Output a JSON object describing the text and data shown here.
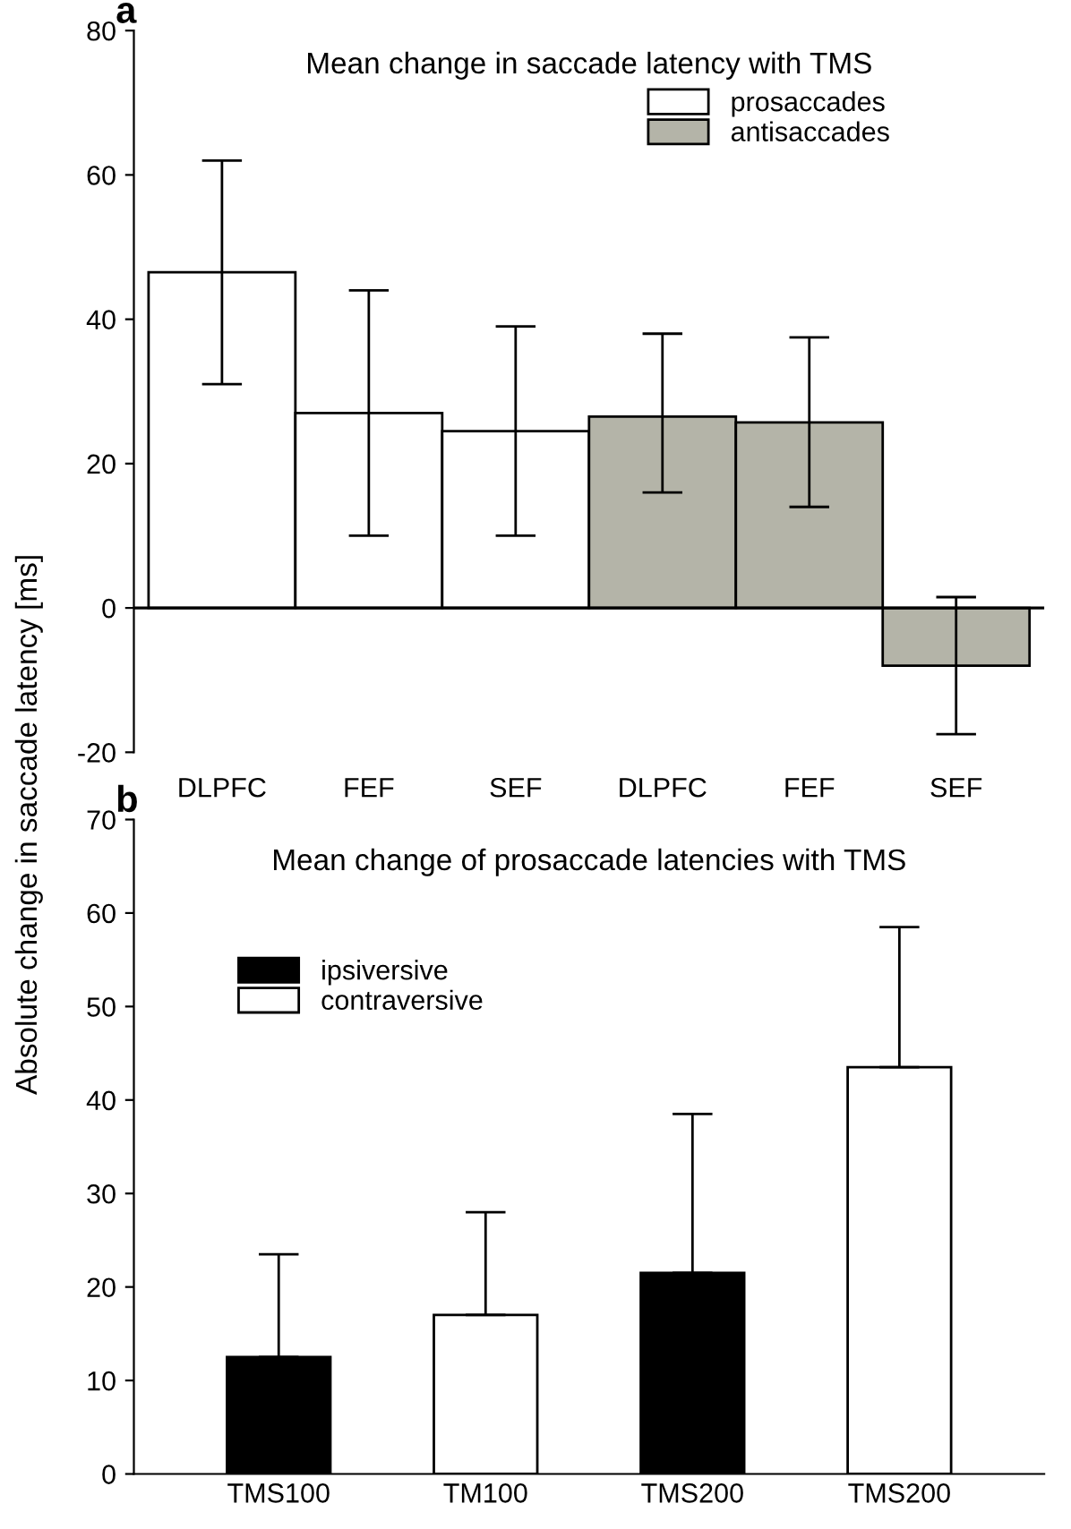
{
  "chart_data": [
    {
      "type": "bar",
      "title": "Mean change in saccade latency with TMS",
      "ylabel": "Absolute change in saccade latency [ms]",
      "categories": [
        "DLPFC",
        "FEF",
        "SEF",
        "DLPFC",
        "FEF",
        "SEF"
      ],
      "series": [
        {
          "name": "prosaccades",
          "color": "#ffffff",
          "values": [
            46.5,
            27,
            24.5,
            null,
            null,
            null
          ],
          "errors": [
            [
              31,
              62
            ],
            [
              10,
              44
            ],
            [
              10,
              39
            ],
            null,
            null,
            null
          ]
        },
        {
          "name": "antisaccades",
          "color": "#b4b4a8",
          "values": [
            null,
            null,
            null,
            26.5,
            25.7,
            -8
          ],
          "errors": [
            null,
            null,
            null,
            [
              16,
              38
            ],
            [
              14,
              37.5
            ],
            [
              -17.5,
              1.5
            ]
          ]
        }
      ],
      "ylim": [
        -20,
        80
      ],
      "yticks": [
        -20,
        0,
        20,
        40,
        60,
        80
      ],
      "ref_lines": [
        {
          "axis": "y",
          "value": 0
        }
      ],
      "legend": "top right",
      "grid": false,
      "annotations": [
        "a"
      ]
    },
    {
      "type": "bar",
      "title": "Mean change of prosaccade latencies with TMS",
      "categories": [
        "TMS100",
        "TM100",
        "TMS200",
        "TMS200"
      ],
      "series": [
        {
          "name": "ipsiversive",
          "color": "#000000",
          "values": [
            12.5,
            null,
            21.5,
            null
          ],
          "errors": [
            [
              12.5,
              23.5
            ],
            null,
            [
              21.5,
              38.5
            ],
            null
          ]
        },
        {
          "name": "contraversive",
          "color": "#ffffff",
          "values": [
            null,
            17,
            null,
            43.5
          ],
          "errors": [
            null,
            [
              17,
              28
            ],
            null,
            [
              43.5,
              58.5
            ]
          ]
        }
      ],
      "ylim": [
        0,
        70
      ],
      "yticks": [
        0,
        10,
        20,
        30,
        40,
        50,
        60,
        70
      ],
      "legend": "top left",
      "grid": false,
      "annotations": [
        "b"
      ]
    }
  ]
}
